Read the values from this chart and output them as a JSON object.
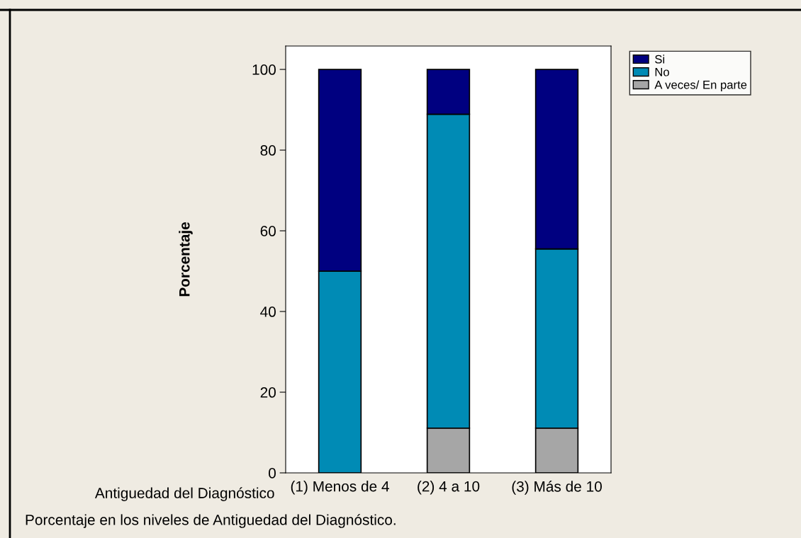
{
  "chart_data": {
    "type": "bar",
    "stacked": true,
    "xlabel": "Antiguedad del Diagnóstico",
    "ylabel": "Porcentaje",
    "categories": [
      "(1) Menos de 4",
      "(2) 4 a 10",
      "(3) Más de 10"
    ],
    "series": [
      {
        "name": "A veces/ En parte",
        "color": "#a6a6a6",
        "values": [
          0,
          11.1,
          11.1
        ]
      },
      {
        "name": "No",
        "color": "#008bb5",
        "values": [
          50,
          77.8,
          44.4
        ]
      },
      {
        "name": "Si",
        "color": "#000080",
        "values": [
          50,
          11.1,
          44.5
        ]
      }
    ],
    "ylim": [
      0,
      105.8
    ],
    "yticks": [
      0,
      20,
      40,
      60,
      80,
      100
    ],
    "grid": false,
    "legend": "top right",
    "annotations": [
      "Porcentaje en los niveles de Antiguedad del Diagnóstico."
    ]
  }
}
